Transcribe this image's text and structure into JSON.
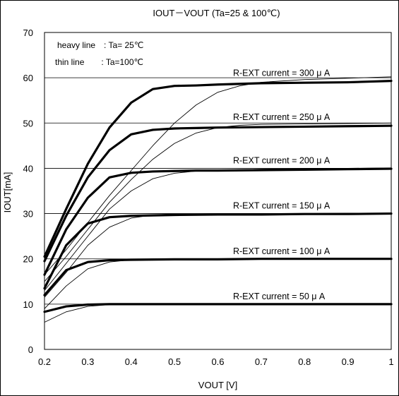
{
  "chart_data": {
    "type": "line",
    "title": "IOUT－VOUT (Ta=25 & 100℃)",
    "xlabel": "VOUT [V]",
    "ylabel": "IOUT[mA]",
    "xlim": [
      0.2,
      1.0
    ],
    "ylim": [
      0,
      70
    ],
    "xticks": [
      "0.2",
      "0.3",
      "0.4",
      "0.5",
      "0.6",
      "0.7",
      "0.8",
      "0.9",
      "1"
    ],
    "yticks": [
      "0",
      "10",
      "20",
      "30",
      "40",
      "50",
      "60",
      "70"
    ],
    "grid": true,
    "notes": [
      "heavy line　: Ta= 25℃",
      "thin line　　: Ta=100℃"
    ],
    "curve_labels": [
      {
        "text": "R-EXT current = 300 μ A",
        "x": 0.635,
        "y": 61.0
      },
      {
        "text": "R-EXT current = 250 μ A",
        "x": 0.635,
        "y": 51.3
      },
      {
        "text": "R-EXT current = 200 μ A",
        "x": 0.635,
        "y": 41.7
      },
      {
        "text": "R-EXT current = 150 μ A",
        "x": 0.635,
        "y": 31.7
      },
      {
        "text": "R-EXT current = 100 μ A",
        "x": 0.635,
        "y": 21.7
      },
      {
        "text": "R-EXT current = 50 μ A",
        "x": 0.635,
        "y": 11.7
      }
    ],
    "series": [
      {
        "style": "heavy",
        "x": [
          0.2,
          0.25,
          0.3,
          0.35,
          0.4,
          0.45,
          0.5,
          0.55,
          0.6,
          0.7,
          0.8,
          0.9,
          1.0
        ],
        "y": [
          20.5,
          31,
          41,
          49,
          54.5,
          57.5,
          58.2,
          58.3,
          58.5,
          58.8,
          58.9,
          59.0,
          59.3
        ]
      },
      {
        "style": "heavy",
        "x": [
          0.2,
          0.25,
          0.3,
          0.35,
          0.4,
          0.45,
          0.5,
          0.55,
          0.6,
          0.7,
          0.8,
          0.9,
          1.0
        ],
        "y": [
          19.5,
          29.5,
          38,
          44,
          47.5,
          48.5,
          48.8,
          48.9,
          49.0,
          49.1,
          49.2,
          49.3,
          49.4
        ]
      },
      {
        "style": "heavy",
        "x": [
          0.2,
          0.25,
          0.3,
          0.35,
          0.4,
          0.45,
          0.5,
          0.55,
          0.6,
          0.7,
          0.8,
          0.9,
          1.0
        ],
        "y": [
          16.5,
          26.5,
          33.5,
          38,
          39.0,
          39.3,
          39.4,
          39.5,
          39.5,
          39.6,
          39.7,
          39.8,
          39.9
        ]
      },
      {
        "style": "heavy",
        "x": [
          0.2,
          0.25,
          0.3,
          0.35,
          0.4,
          0.45,
          0.5,
          0.6,
          0.7,
          0.8,
          0.9,
          1.0
        ],
        "y": [
          13.5,
          23,
          27.8,
          29.2,
          29.5,
          29.6,
          29.7,
          29.8,
          29.8,
          29.9,
          29.9,
          30.0
        ]
      },
      {
        "style": "heavy",
        "x": [
          0.2,
          0.25,
          0.3,
          0.35,
          0.4,
          0.5,
          0.6,
          0.7,
          0.8,
          0.9,
          1.0
        ],
        "y": [
          12.0,
          17.5,
          19.3,
          19.7,
          19.8,
          19.9,
          19.9,
          20.0,
          20.0,
          20.0,
          20.0
        ]
      },
      {
        "style": "heavy",
        "x": [
          0.2,
          0.25,
          0.3,
          0.35,
          0.4,
          0.5,
          0.6,
          0.7,
          0.8,
          0.9,
          1.0
        ],
        "y": [
          8.3,
          9.5,
          9.9,
          10.0,
          10.0,
          10.0,
          10.0,
          10.0,
          10.0,
          10.0,
          10.0
        ]
      },
      {
        "style": "thin",
        "x": [
          0.2,
          0.25,
          0.3,
          0.35,
          0.4,
          0.45,
          0.5,
          0.55,
          0.6,
          0.65,
          0.7,
          0.8,
          0.9,
          1.0
        ],
        "y": [
          16.5,
          22,
          28,
          34,
          39.5,
          45,
          50,
          54,
          56.8,
          58.2,
          59.0,
          59.6,
          59.9,
          60.2
        ]
      },
      {
        "style": "thin",
        "x": [
          0.2,
          0.25,
          0.3,
          0.35,
          0.4,
          0.45,
          0.5,
          0.55,
          0.6,
          0.65,
          0.7,
          0.8,
          0.9,
          1.0
        ],
        "y": [
          15.0,
          20.5,
          26.5,
          32.5,
          37.5,
          42,
          45.5,
          47.8,
          49.0,
          49.5,
          49.7,
          49.8,
          49.9,
          50.0
        ]
      },
      {
        "style": "thin",
        "x": [
          0.2,
          0.25,
          0.3,
          0.35,
          0.4,
          0.45,
          0.5,
          0.55,
          0.6,
          0.7,
          0.8,
          0.9,
          1.0
        ],
        "y": [
          13.0,
          19,
          25,
          31,
          35,
          37.7,
          38.9,
          39.4,
          39.6,
          39.8,
          39.9,
          40.0,
          40.1
        ]
      },
      {
        "style": "thin",
        "x": [
          0.2,
          0.25,
          0.3,
          0.35,
          0.4,
          0.45,
          0.5,
          0.6,
          0.7,
          0.8,
          0.9,
          1.0
        ],
        "y": [
          11.5,
          17,
          23,
          27,
          29.0,
          29.7,
          29.9,
          30.0,
          30.0,
          30.0,
          30.1,
          30.1
        ]
      },
      {
        "style": "thin",
        "x": [
          0.2,
          0.25,
          0.3,
          0.35,
          0.4,
          0.45,
          0.5,
          0.6,
          0.7,
          0.8,
          0.9,
          1.0
        ],
        "y": [
          9.0,
          14,
          17.8,
          19.3,
          19.8,
          20.0,
          20.0,
          20.0,
          20.0,
          20.1,
          20.1,
          20.1
        ]
      },
      {
        "style": "thin",
        "x": [
          0.2,
          0.25,
          0.3,
          0.35,
          0.4,
          0.5,
          0.6,
          0.7,
          0.8,
          0.9,
          1.0
        ],
        "y": [
          6.0,
          8.3,
          9.5,
          9.9,
          10.0,
          10.0,
          10.0,
          10.0,
          10.0,
          10.0,
          10.0
        ]
      }
    ]
  }
}
